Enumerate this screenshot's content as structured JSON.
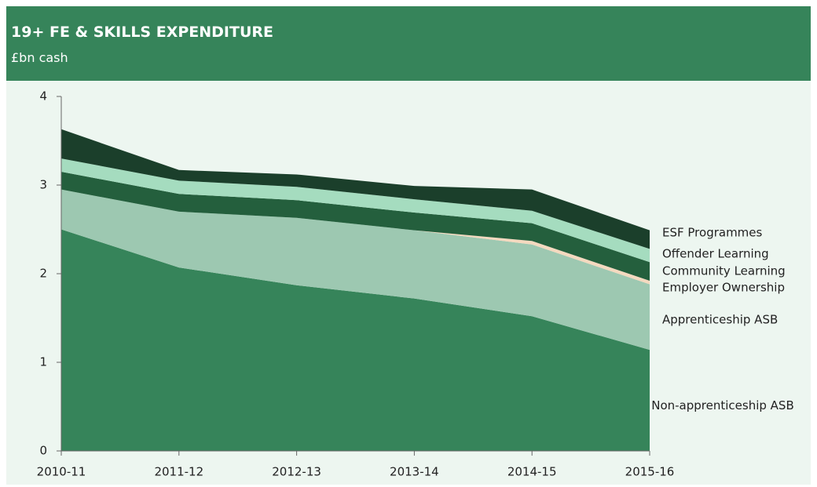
{
  "chart_data": {
    "type": "stacked-area",
    "title": "19+ FE & SKILLS EXPENDITURE",
    "subtitle": "£bn cash",
    "categories": [
      "2010-11",
      "2011-12",
      "2012-13",
      "2013-14",
      "2014-15",
      "2015-16"
    ],
    "series": [
      {
        "name": "Non-apprenticeship ASB",
        "color": "#36845a",
        "values": [
          2.5,
          2.07,
          1.87,
          1.72,
          1.52,
          1.14
        ]
      },
      {
        "name": "Apprenticeship ASB",
        "color": "#9dc8b1",
        "values": [
          0.45,
          0.63,
          0.76,
          0.77,
          0.81,
          0.74
        ]
      },
      {
        "name": "Employer Ownership",
        "color": "#f4d9bf",
        "values": [
          0,
          0,
          0,
          0,
          0.04,
          0.04
        ]
      },
      {
        "name": "Community Learning",
        "color": "#245f3d",
        "values": [
          0.2,
          0.2,
          0.2,
          0.2,
          0.2,
          0.21
        ]
      },
      {
        "name": "Offender Learning",
        "color": "#a5dcbf",
        "values": [
          0.15,
          0.15,
          0.15,
          0.15,
          0.14,
          0.15
        ]
      },
      {
        "name": "ESF Programmes",
        "color": "#1b3f2b",
        "values": [
          0.33,
          0.12,
          0.14,
          0.15,
          0.24,
          0.21
        ]
      }
    ],
    "ylim": [
      0,
      4
    ],
    "yticks": [
      0,
      1,
      2,
      3,
      4
    ]
  }
}
